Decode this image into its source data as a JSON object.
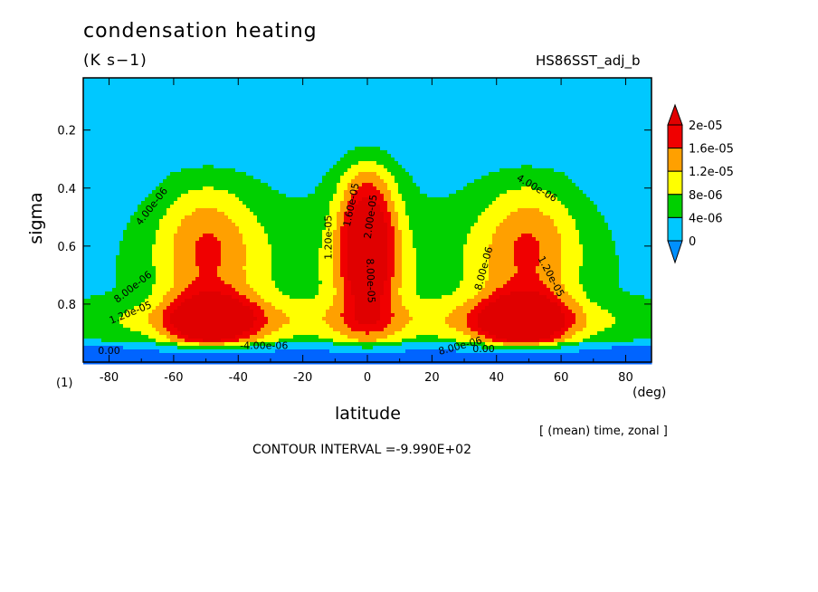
{
  "header": {
    "title": "condensation heating",
    "units": "(K s−1)",
    "run_name": "HS86SST_adj_b",
    "panel_label": "(1)",
    "averaging_note": "[ (mean) time, zonal ]",
    "contour_interval": "CONTOUR INTERVAL =-9.990E+02"
  },
  "chart_data": {
    "type": "heatmap",
    "title": "condensation heating",
    "xlabel": "latitude",
    "xunit": "(deg)",
    "ylabel": "sigma",
    "xlim": [
      -88,
      88
    ],
    "ylim": [
      1.0,
      0.02
    ],
    "x_ticks": [
      -80,
      -60,
      -40,
      -20,
      0,
      20,
      40,
      60,
      80
    ],
    "x_tick_labels": [
      "-80",
      "-60",
      "-40",
      "-20",
      "0",
      "20",
      "40",
      "60",
      "80"
    ],
    "y_ticks": [
      0.2,
      0.4,
      0.6,
      0.8
    ],
    "y_tick_labels": [
      "0.2",
      "0.4",
      "0.6",
      "0.8"
    ],
    "colorbar": {
      "levels": [
        0,
        4e-06,
        8e-06,
        1.2e-05,
        1.6e-05,
        2e-05
      ],
      "labels": [
        "0",
        "4e-06",
        "8e-06",
        "1.2e-05",
        "1.6e-05",
        "2e-05"
      ],
      "colors": [
        "#0090ff",
        "#00c8ff",
        "#00d000",
        "#ffff00",
        "#ffa000",
        "#f00000"
      ],
      "under_color": "#0064ff",
      "over_color": "#e00000"
    },
    "contour_labels": [
      {
        "text": "4.00e-06",
        "x": -66,
        "y": 0.47,
        "angle": -52
      },
      {
        "text": "8.00e-06",
        "x": -72,
        "y": 0.75,
        "angle": -38
      },
      {
        "text": "1.20e-05",
        "x": -73,
        "y": 0.84,
        "angle": -22
      },
      {
        "text": "0.00",
        "x": -80,
        "y": 0.972,
        "angle": 0
      },
      {
        "text": "-4.00e-06",
        "x": -32,
        "y": 0.955,
        "angle": 0
      },
      {
        "text": "1.20e-05",
        "x": -11,
        "y": 0.57,
        "angle": -90
      },
      {
        "text": "1.60e-05",
        "x": -4,
        "y": 0.46,
        "angle": -78
      },
      {
        "text": "2.00e-05",
        "x": 2,
        "y": 0.5,
        "angle": -82
      },
      {
        "text": "8.00e-05",
        "x": 0,
        "y": 0.72,
        "angle": 88
      },
      {
        "text": "4.00e-06",
        "x": 52,
        "y": 0.41,
        "angle": 30
      },
      {
        "text": "8.00e-06",
        "x": 37,
        "y": 0.68,
        "angle": -75
      },
      {
        "text": "1.20e-05",
        "x": 56,
        "y": 0.71,
        "angle": 62
      },
      {
        "text": "8.00e-06",
        "x": 29,
        "y": 0.955,
        "angle": -15
      },
      {
        "text": "0.00",
        "x": 36,
        "y": 0.965,
        "angle": 0
      }
    ]
  }
}
